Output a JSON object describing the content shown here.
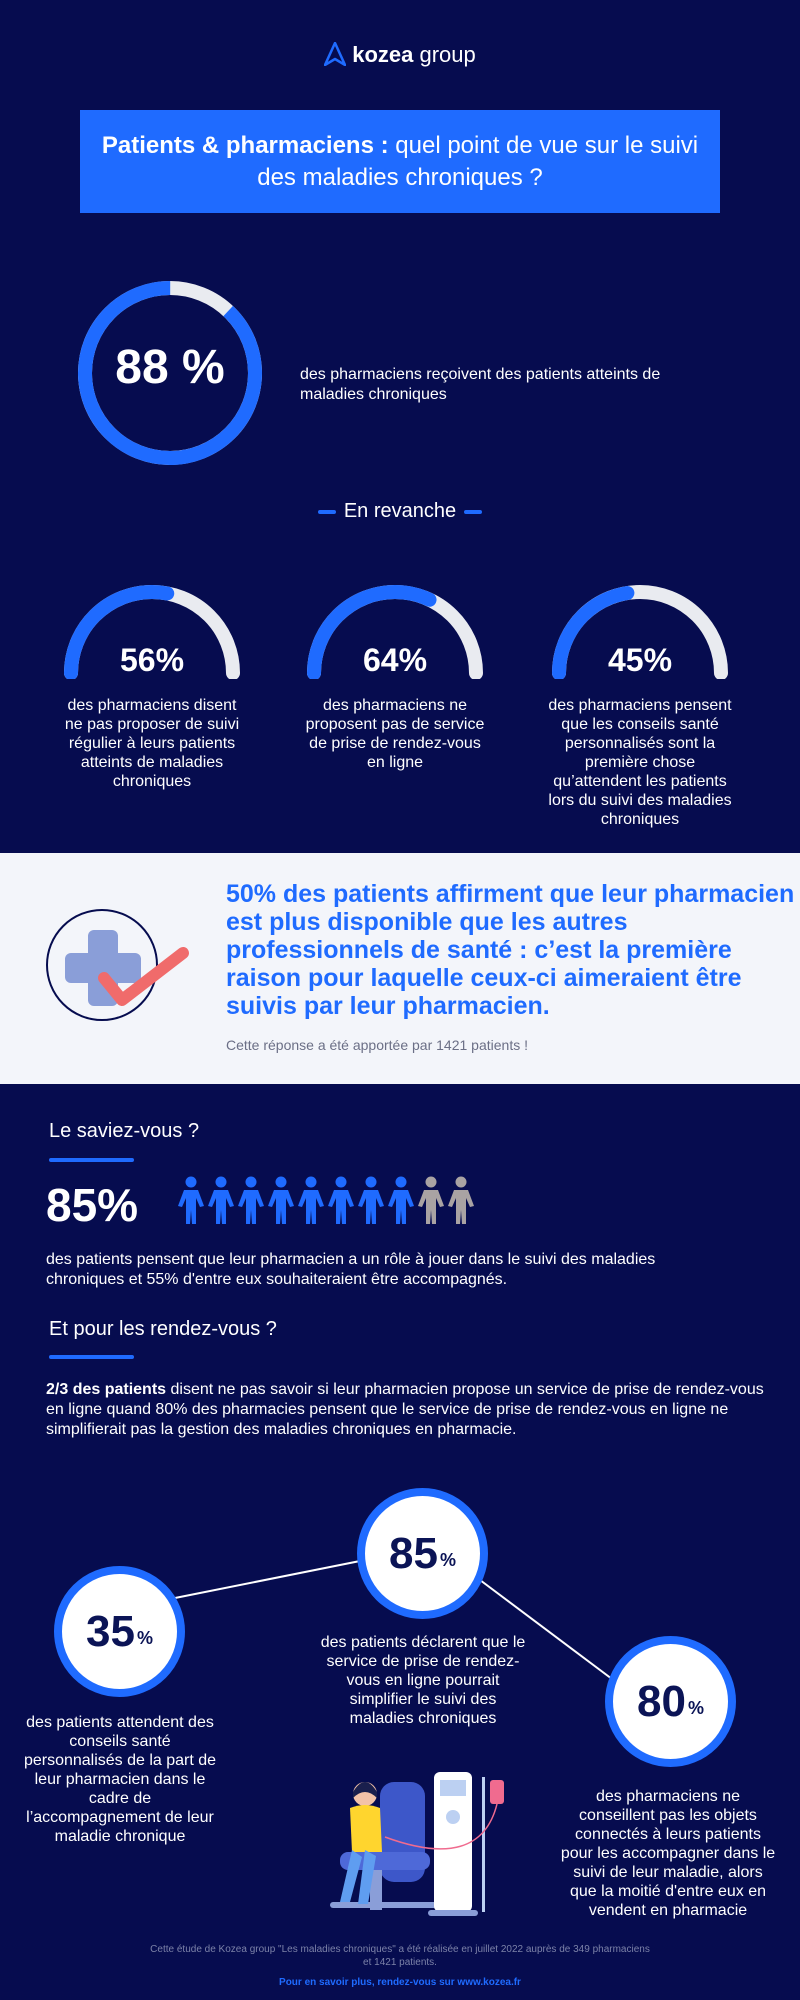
{
  "header": {
    "brand": "kozea",
    "brand_suffix": "group"
  },
  "title": {
    "bold": "Patients & pharmaciens :",
    "rest": "quel point de vue sur le suivi des maladies chroniques ?"
  },
  "ring_main": {
    "value": "88 %",
    "fraction": 0.88,
    "text": "des pharmaciens reçoivent des patients atteints de maladies chroniques"
  },
  "revanche": "En revanche",
  "gauges": [
    {
      "value": "56%",
      "fraction": 0.56,
      "text": "des pharmaciens disent ne pas proposer de suivi régulier à leurs patients atteints de maladies chroniques"
    },
    {
      "value": "64%",
      "fraction": 0.64,
      "text": "des pharmaciens ne proposent pas de service de prise de rendez-vous en ligne"
    },
    {
      "value": "45%",
      "fraction": 0.45,
      "text": "des pharmaciens pensent que les conseils santé personnalisés sont la première chose qu’attendent les patients lors du suivi des maladies chroniques"
    }
  ],
  "highlight": {
    "headline": "50% des patients affirment que leur pharmacien est plus disponible que les autres professionnels de santé : c’est la première raison pour laquelle ceux-ci aimeraient être suivis par leur pharmacien.",
    "note": "Cette réponse a été apportée par 1421 patients !"
  },
  "saviez": {
    "title": "Le saviez-vous ?",
    "value": "85%",
    "people_filled": 8,
    "people_total": 10,
    "text": "des patients pensent que leur pharmacien a un rôle à jouer dans le suivi des maladies chroniques et 55% d'entre eux souhaiteraient être accompagnés."
  },
  "rdv": {
    "title": "Et pour les rendez-vous ?",
    "bold": "2/3 des patients",
    "text": "disent ne pas savoir si leur pharmacien propose un service de prise de rendez-vous en ligne quand 80% des pharmacies pensent que le service de prise de rendez-vous en ligne ne simplifierait pas la gestion des maladies chroniques en pharmacie."
  },
  "circles": [
    {
      "value": "35",
      "unit": "%",
      "text": "des patients attendent des conseils santé personnalisés de la part de leur pharmacien dans le cadre de l’accompagnement de leur maladie chronique"
    },
    {
      "value": "85",
      "unit": "%",
      "text": "des patients déclarent que le service de prise de rendez-vous en ligne pourrait simplifier le suivi des maladies chroniques"
    },
    {
      "value": "80",
      "unit": "%",
      "text": "des pharmaciens ne conseillent pas les objets connectés à leurs patients pour les accompagner dans le suivi de leur maladie, alors que la moitié d'entre eux en vendent en pharmacie"
    }
  ],
  "footer": {
    "note": "Cette étude de Kozea group \"Les maladies chroniques\" a été réalisée en juillet 2022 auprès de 349 pharmaciens et 1421 patients.",
    "link": "Pour en savoir plus, rendez-vous sur www.kozea.fr"
  },
  "colors": {
    "background": "#060c4f",
    "accent": "#1f6bff",
    "track": "#e9ebf0",
    "person_grey": "#a9a3a3",
    "band": "#f3f5fa"
  }
}
